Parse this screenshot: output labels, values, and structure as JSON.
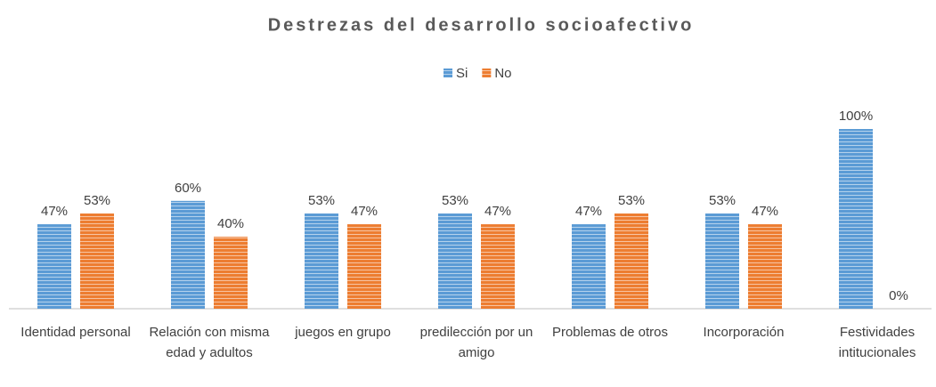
{
  "chart_data": {
    "type": "bar",
    "title": "Destrezas del desarrollo socioafectivo",
    "categories": [
      "Identidad personal",
      "Relación con misma edad y adultos",
      "juegos en grupo",
      "predilección por un amigo",
      "Problemas de otros",
      "Incorporación",
      "Festividades intitucionales"
    ],
    "series": [
      {
        "name": "Si",
        "color": "#5b9bd5",
        "values": [
          47,
          60,
          53,
          53,
          47,
          53,
          100
        ],
        "value_labels": [
          "47%",
          "60%",
          "53%",
          "53%",
          "47%",
          "53%",
          "100%"
        ]
      },
      {
        "name": "No",
        "color": "#ed7d31",
        "values": [
          53,
          40,
          47,
          47,
          53,
          47,
          0
        ],
        "value_labels": [
          "53%",
          "40%",
          "47%",
          "47%",
          "53%",
          "47%",
          "0%"
        ]
      }
    ],
    "legend": "top"
  }
}
